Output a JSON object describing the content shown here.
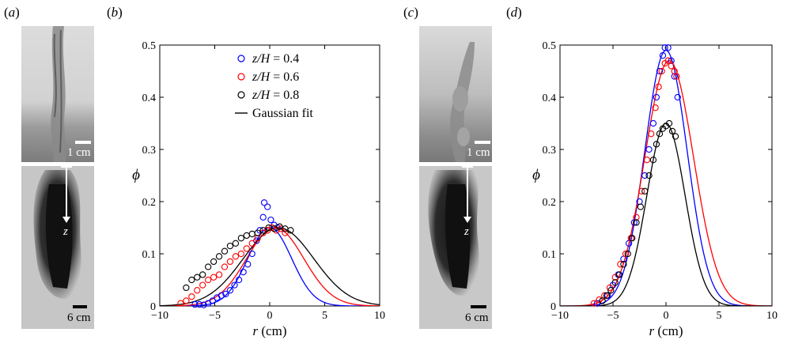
{
  "panels": {
    "a": {
      "label_prefix": "(",
      "label_letter": "a",
      "label_suffix": ")",
      "scale_top": "1 cm",
      "scale_bottom": "6 cm",
      "axis_symbol": "z"
    },
    "b": {
      "label_prefix": "(",
      "label_letter": "b",
      "label_suffix": ")"
    },
    "c": {
      "label_prefix": "(",
      "label_letter": "c",
      "label_suffix": ")",
      "scale_top": "1 cm",
      "scale_bottom": "6 cm",
      "axis_symbol": "z"
    },
    "d": {
      "label_prefix": "(",
      "label_letter": "d",
      "label_suffix": ")"
    }
  },
  "colors": {
    "blue": "#0000ff",
    "red": "#ff0000",
    "black": "#000000"
  },
  "chart_data": [
    {
      "type": "scatter",
      "panel": "b",
      "xlabel": "r (cm)",
      "ylabel": "ϕ",
      "xlim": [
        -10,
        10
      ],
      "ylim": [
        0,
        0.5
      ],
      "xticks": [
        -10,
        -5,
        0,
        5,
        10
      ],
      "yticks": [
        0,
        0.1,
        0.2,
        0.3,
        0.4,
        0.5
      ],
      "legend_position": "top-right",
      "legend": [
        {
          "name": "z/H = 0.4",
          "var": "z/H",
          "eq": " = 0.4",
          "marker": "circle",
          "color": "#0000ff"
        },
        {
          "name": "z/H = 0.6",
          "var": "z/H",
          "eq": " = 0.6",
          "marker": "circle",
          "color": "#ff0000"
        },
        {
          "name": "z/H = 0.8",
          "var": "z/H",
          "eq": " = 0.8",
          "marker": "circle",
          "color": "#000000"
        },
        {
          "name": "Gaussian fit",
          "var": "",
          "eq": "Gaussian fit",
          "marker": "line",
          "color": "#000000"
        }
      ],
      "series": [
        {
          "name": "z/H = 0.4",
          "color": "#0000ff",
          "points": [
            [
              -6.8,
              0.003
            ],
            [
              -6.4,
              0.003
            ],
            [
              -6.0,
              0.002
            ],
            [
              -5.6,
              0.005
            ],
            [
              -5.2,
              0.01
            ],
            [
              -4.8,
              0.016
            ],
            [
              -4.4,
              0.02
            ],
            [
              -4.0,
              0.023
            ],
            [
              -3.6,
              0.03
            ],
            [
              -3.2,
              0.04
            ],
            [
              -2.8,
              0.05
            ],
            [
              -2.4,
              0.065
            ],
            [
              -2.0,
              0.08
            ],
            [
              -1.6,
              0.1
            ],
            [
              -1.2,
              0.125
            ],
            [
              -0.9,
              0.145
            ],
            [
              -0.6,
              0.17
            ],
            [
              -0.5,
              0.198
            ],
            [
              -0.2,
              0.19
            ],
            [
              0.1,
              0.165
            ],
            [
              0.4,
              0.155
            ],
            [
              0.7,
              0.15
            ]
          ],
          "fit": {
            "amplitude": 0.15,
            "center": 0.0,
            "sigma": 2.0
          }
        },
        {
          "name": "z/H = 0.6",
          "color": "#ff0000",
          "points": [
            [
              -8.1,
              0.005
            ],
            [
              -7.6,
              0.01
            ],
            [
              -7.1,
              0.018
            ],
            [
              -6.6,
              0.03
            ],
            [
              -6.1,
              0.04
            ],
            [
              -5.6,
              0.05
            ],
            [
              -5.1,
              0.055
            ],
            [
              -4.6,
              0.06
            ],
            [
              -4.1,
              0.075
            ],
            [
              -3.6,
              0.085
            ],
            [
              -3.1,
              0.095
            ],
            [
              -2.6,
              0.1
            ],
            [
              -2.1,
              0.11
            ],
            [
              -1.6,
              0.12
            ],
            [
              -1.1,
              0.13
            ],
            [
              -0.6,
              0.14
            ],
            [
              -0.2,
              0.145
            ],
            [
              0.2,
              0.15
            ],
            [
              0.6,
              0.145
            ],
            [
              1.0,
              0.148
            ],
            [
              1.4,
              0.14
            ]
          ],
          "fit": {
            "amplitude": 0.15,
            "center": 0.5,
            "sigma": 2.6
          }
        },
        {
          "name": "z/H = 0.8",
          "color": "#000000",
          "points": [
            [
              -7.6,
              0.035
            ],
            [
              -7.1,
              0.05
            ],
            [
              -6.6,
              0.055
            ],
            [
              -6.1,
              0.06
            ],
            [
              -5.6,
              0.075
            ],
            [
              -5.1,
              0.085
            ],
            [
              -4.6,
              0.095
            ],
            [
              -4.1,
              0.105
            ],
            [
              -3.6,
              0.115
            ],
            [
              -3.1,
              0.12
            ],
            [
              -2.6,
              0.13
            ],
            [
              -2.1,
              0.135
            ],
            [
              -1.6,
              0.138
            ],
            [
              -1.1,
              0.14
            ],
            [
              -0.6,
              0.145
            ],
            [
              -0.1,
              0.15
            ],
            [
              0.4,
              0.148
            ],
            [
              0.9,
              0.152
            ],
            [
              1.4,
              0.148
            ],
            [
              1.9,
              0.145
            ]
          ],
          "fit": {
            "amplitude": 0.15,
            "center": 0.8,
            "sigma": 3.2
          }
        }
      ]
    },
    {
      "type": "scatter",
      "panel": "d",
      "xlabel": "r (cm)",
      "ylabel": "ϕ",
      "xlim": [
        -10,
        10
      ],
      "ylim": [
        0,
        0.5
      ],
      "xticks": [
        -10,
        -5,
        0,
        5,
        10
      ],
      "yticks": [
        0,
        0.1,
        0.2,
        0.3,
        0.4,
        0.5
      ],
      "series": [
        {
          "name": "z/H = 0.4",
          "color": "#0000ff",
          "points": [
            [
              -6.5,
              0.005
            ],
            [
              -6.0,
              0.01
            ],
            [
              -5.5,
              0.02
            ],
            [
              -5.0,
              0.04
            ],
            [
              -4.5,
              0.06
            ],
            [
              -4.0,
              0.09
            ],
            [
              -3.5,
              0.12
            ],
            [
              -3.0,
              0.16
            ],
            [
              -2.5,
              0.2
            ],
            [
              -2.0,
              0.25
            ],
            [
              -1.6,
              0.3
            ],
            [
              -1.2,
              0.35
            ],
            [
              -0.9,
              0.4
            ],
            [
              -0.6,
              0.45
            ],
            [
              -0.3,
              0.48
            ],
            [
              -0.1,
              0.495
            ],
            [
              0.2,
              0.495
            ],
            [
              0.5,
              0.47
            ],
            [
              0.8,
              0.44
            ],
            [
              1.1,
              0.4
            ]
          ],
          "fit": {
            "amplitude": 0.49,
            "center": 0.0,
            "sigma": 2.0
          }
        },
        {
          "name": "z/H = 0.6",
          "color": "#ff0000",
          "points": [
            [
              -6.8,
              0.005
            ],
            [
              -6.3,
              0.012
            ],
            [
              -5.8,
              0.02
            ],
            [
              -5.3,
              0.035
            ],
            [
              -4.8,
              0.055
            ],
            [
              -4.3,
              0.08
            ],
            [
              -3.8,
              0.1
            ],
            [
              -3.3,
              0.13
            ],
            [
              -2.8,
              0.17
            ],
            [
              -2.3,
              0.22
            ],
            [
              -1.8,
              0.28
            ],
            [
              -1.4,
              0.33
            ],
            [
              -1.0,
              0.38
            ],
            [
              -0.7,
              0.42
            ],
            [
              -0.4,
              0.45
            ],
            [
              -0.1,
              0.465
            ],
            [
              0.2,
              0.47
            ],
            [
              0.5,
              0.46
            ],
            [
              0.8,
              0.45
            ],
            [
              1.0,
              0.44
            ]
          ],
          "fit": {
            "amplitude": 0.47,
            "center": 0.3,
            "sigma": 2.3
          }
        },
        {
          "name": "z/H = 0.8",
          "color": "#000000",
          "points": [
            [
              -6.0,
              0.01
            ],
            [
              -5.6,
              0.02
            ],
            [
              -5.2,
              0.03
            ],
            [
              -4.8,
              0.045
            ],
            [
              -4.4,
              0.06
            ],
            [
              -4.0,
              0.08
            ],
            [
              -3.6,
              0.1
            ],
            [
              -3.2,
              0.13
            ],
            [
              -2.8,
              0.16
            ],
            [
              -2.4,
              0.19
            ],
            [
              -2.0,
              0.22
            ],
            [
              -1.6,
              0.25
            ],
            [
              -1.2,
              0.28
            ],
            [
              -0.9,
              0.31
            ],
            [
              -0.6,
              0.33
            ],
            [
              -0.3,
              0.34
            ],
            [
              0.0,
              0.345
            ],
            [
              0.3,
              0.35
            ],
            [
              0.6,
              0.335
            ],
            [
              0.9,
              0.325
            ]
          ],
          "fit": {
            "amplitude": 0.35,
            "center": 0.0,
            "sigma": 1.8
          }
        }
      ]
    }
  ]
}
